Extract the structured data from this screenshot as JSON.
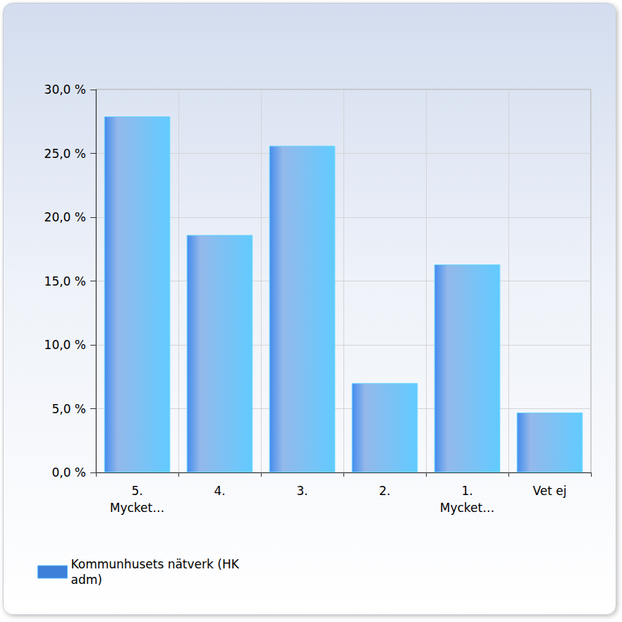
{
  "chart_data": {
    "type": "bar",
    "categories": [
      "5.\nMycket…",
      "4.",
      "3.",
      "2.",
      "1.\nMycket…",
      "Vet ej"
    ],
    "series": [
      {
        "name": "Kommunhusets nätverk (HK adm)",
        "color": "#3d7fd9",
        "values": [
          27.9,
          18.6,
          25.6,
          7.0,
          16.3,
          4.7
        ]
      }
    ],
    "ylim": [
      0,
      30
    ],
    "yticks": [
      {
        "value": 0,
        "label": "0,0 %"
      },
      {
        "value": 5,
        "label": "5,0 %"
      },
      {
        "value": 10,
        "label": "10,0 %"
      },
      {
        "value": 15,
        "label": "15,0 %"
      },
      {
        "value": 20,
        "label": "20,0 %"
      },
      {
        "value": 25,
        "label": "25,0 %"
      },
      {
        "value": 30,
        "label": "30,0 %"
      }
    ],
    "grid": true,
    "legend": "bottom-left"
  }
}
